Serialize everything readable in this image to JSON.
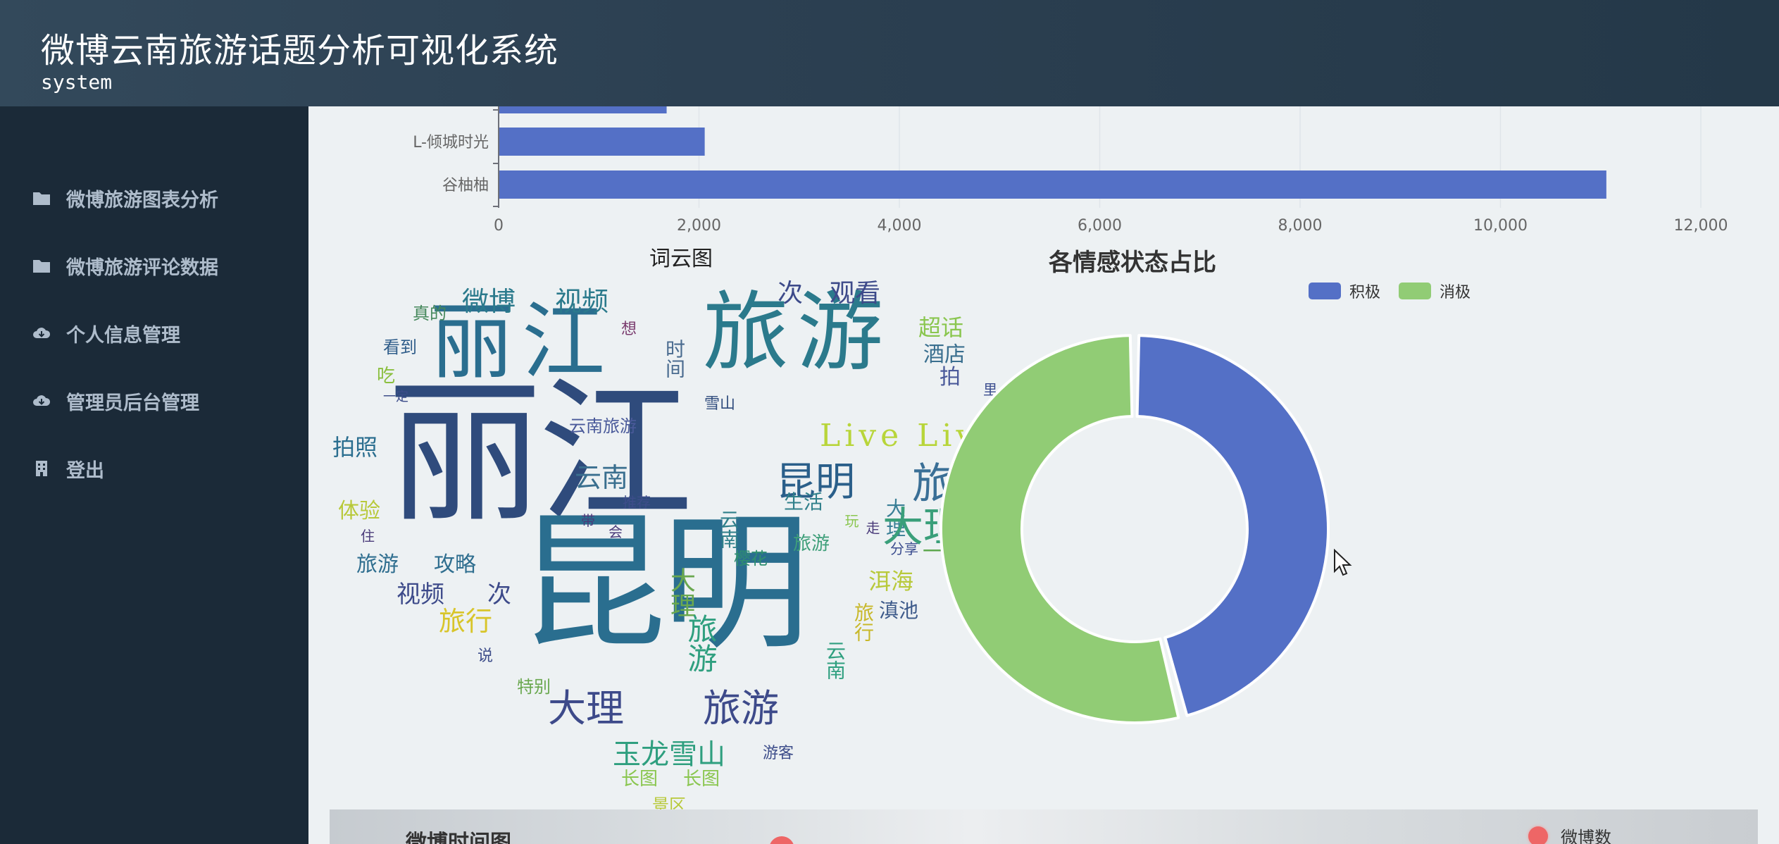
{
  "header": {
    "title": "微博云南旅游话题分析可视化系统",
    "subtitle": "system"
  },
  "sidebar": {
    "items": [
      {
        "label": "微博旅游图表分析",
        "icon": "folder-icon"
      },
      {
        "label": "微博旅游评论数据",
        "icon": "folder-icon"
      },
      {
        "label": "个人信息管理",
        "icon": "cloud-download-icon"
      },
      {
        "label": "管理员后台管理",
        "icon": "cloud-download-icon"
      },
      {
        "label": "登出",
        "icon": "building-icon"
      }
    ]
  },
  "chart_data": [
    {
      "type": "bar",
      "orientation": "horizontal",
      "title": "",
      "categories": [
        "L-倾城时光",
        "谷柚柚"
      ],
      "values": [
        2050,
        11050
      ],
      "partially_visible_bar": {
        "category": "",
        "value": 1670
      },
      "xlim": [
        0,
        12000
      ],
      "x_ticks": [
        "0",
        "2,000",
        "4,000",
        "6,000",
        "8,000",
        "10,000",
        "12,000"
      ],
      "grid": true,
      "colors": {
        "bar": "#5470c6"
      }
    },
    {
      "type": "pie",
      "variant": "donut",
      "title": "各情感状态占比",
      "legend_position": "top-center",
      "categories": [
        "积极",
        "消极"
      ],
      "values": [
        46,
        54
      ],
      "colors": [
        "#5470c6",
        "#91cc75"
      ]
    }
  ],
  "wordcloud": {
    "title": "词云图",
    "words": [
      "丽江",
      "昆明",
      "旅游",
      "丽江",
      "微博",
      "视频",
      "次",
      "观看",
      "超话",
      "酒店",
      "拍",
      "里",
      "真的",
      "想",
      "看到",
      "时间",
      "吃",
      "一定",
      "雪山",
      "云南旅游",
      "Live Live",
      "昆明",
      "旅游",
      "拍照",
      "云南",
      "大理",
      "生活",
      "推荐",
      "云南",
      "体验",
      "住",
      "带",
      "会",
      "玩",
      "走",
      "大理",
      "旅游",
      "攻略",
      "樱花",
      "旅游",
      "分享",
      "一个",
      "视频",
      "次",
      "大理",
      "洱海",
      "旅行",
      "旅行",
      "滇池",
      "旅游",
      "说",
      "云南",
      "特别",
      "大理",
      "旅游",
      "玉龙雪山",
      "游客",
      "长图",
      "长图",
      "景区"
    ]
  },
  "time_panel": {
    "title": "微博时间图",
    "legend_label": "微博数"
  },
  "colors": {
    "accent": "#5470c6",
    "secondary": "#91cc75",
    "time_series": "#ee6666"
  }
}
